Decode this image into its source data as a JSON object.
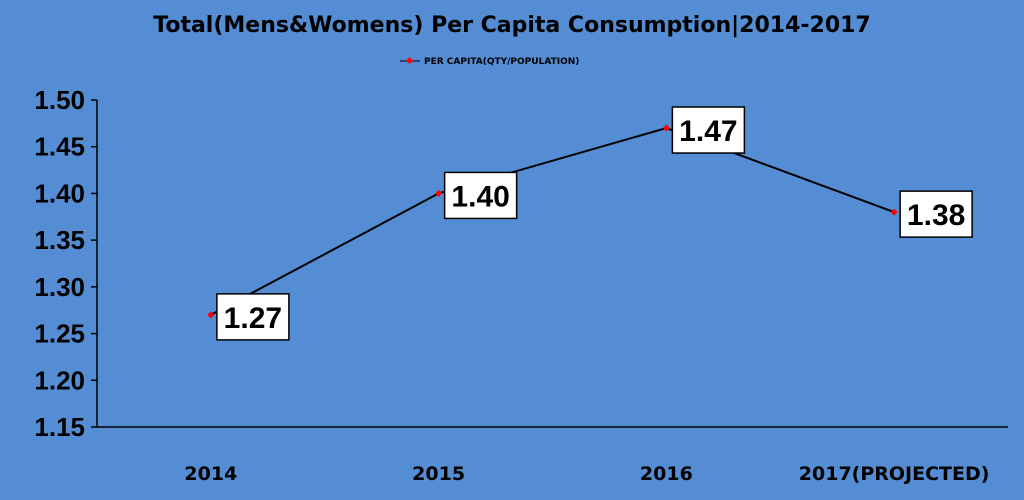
{
  "chart_data": {
    "type": "line",
    "title": "Total(Mens&Womens) Per Capita Consumption|2014-2017",
    "categories": [
      "2014",
      "2015",
      "2016",
      "2017(PROJECTED)"
    ],
    "series": [
      {
        "name": "PER CAPITA(QTY/POPULATION)",
        "values": [
          1.27,
          1.4,
          1.47,
          1.38
        ],
        "data_labels": [
          "1.27",
          "1.40",
          "1.47",
          "1.38"
        ]
      }
    ],
    "ylim": [
      1.15,
      1.5
    ],
    "yticks": [
      "1.15",
      "1.20",
      "1.25",
      "1.30",
      "1.35",
      "1.40",
      "1.45",
      "1.50"
    ],
    "grid": false,
    "legend_position": "top-center",
    "colors": {
      "background": "#548DD4",
      "line": "#000000",
      "marker": "#FF0000",
      "label_box": "#FFFFFF"
    }
  }
}
